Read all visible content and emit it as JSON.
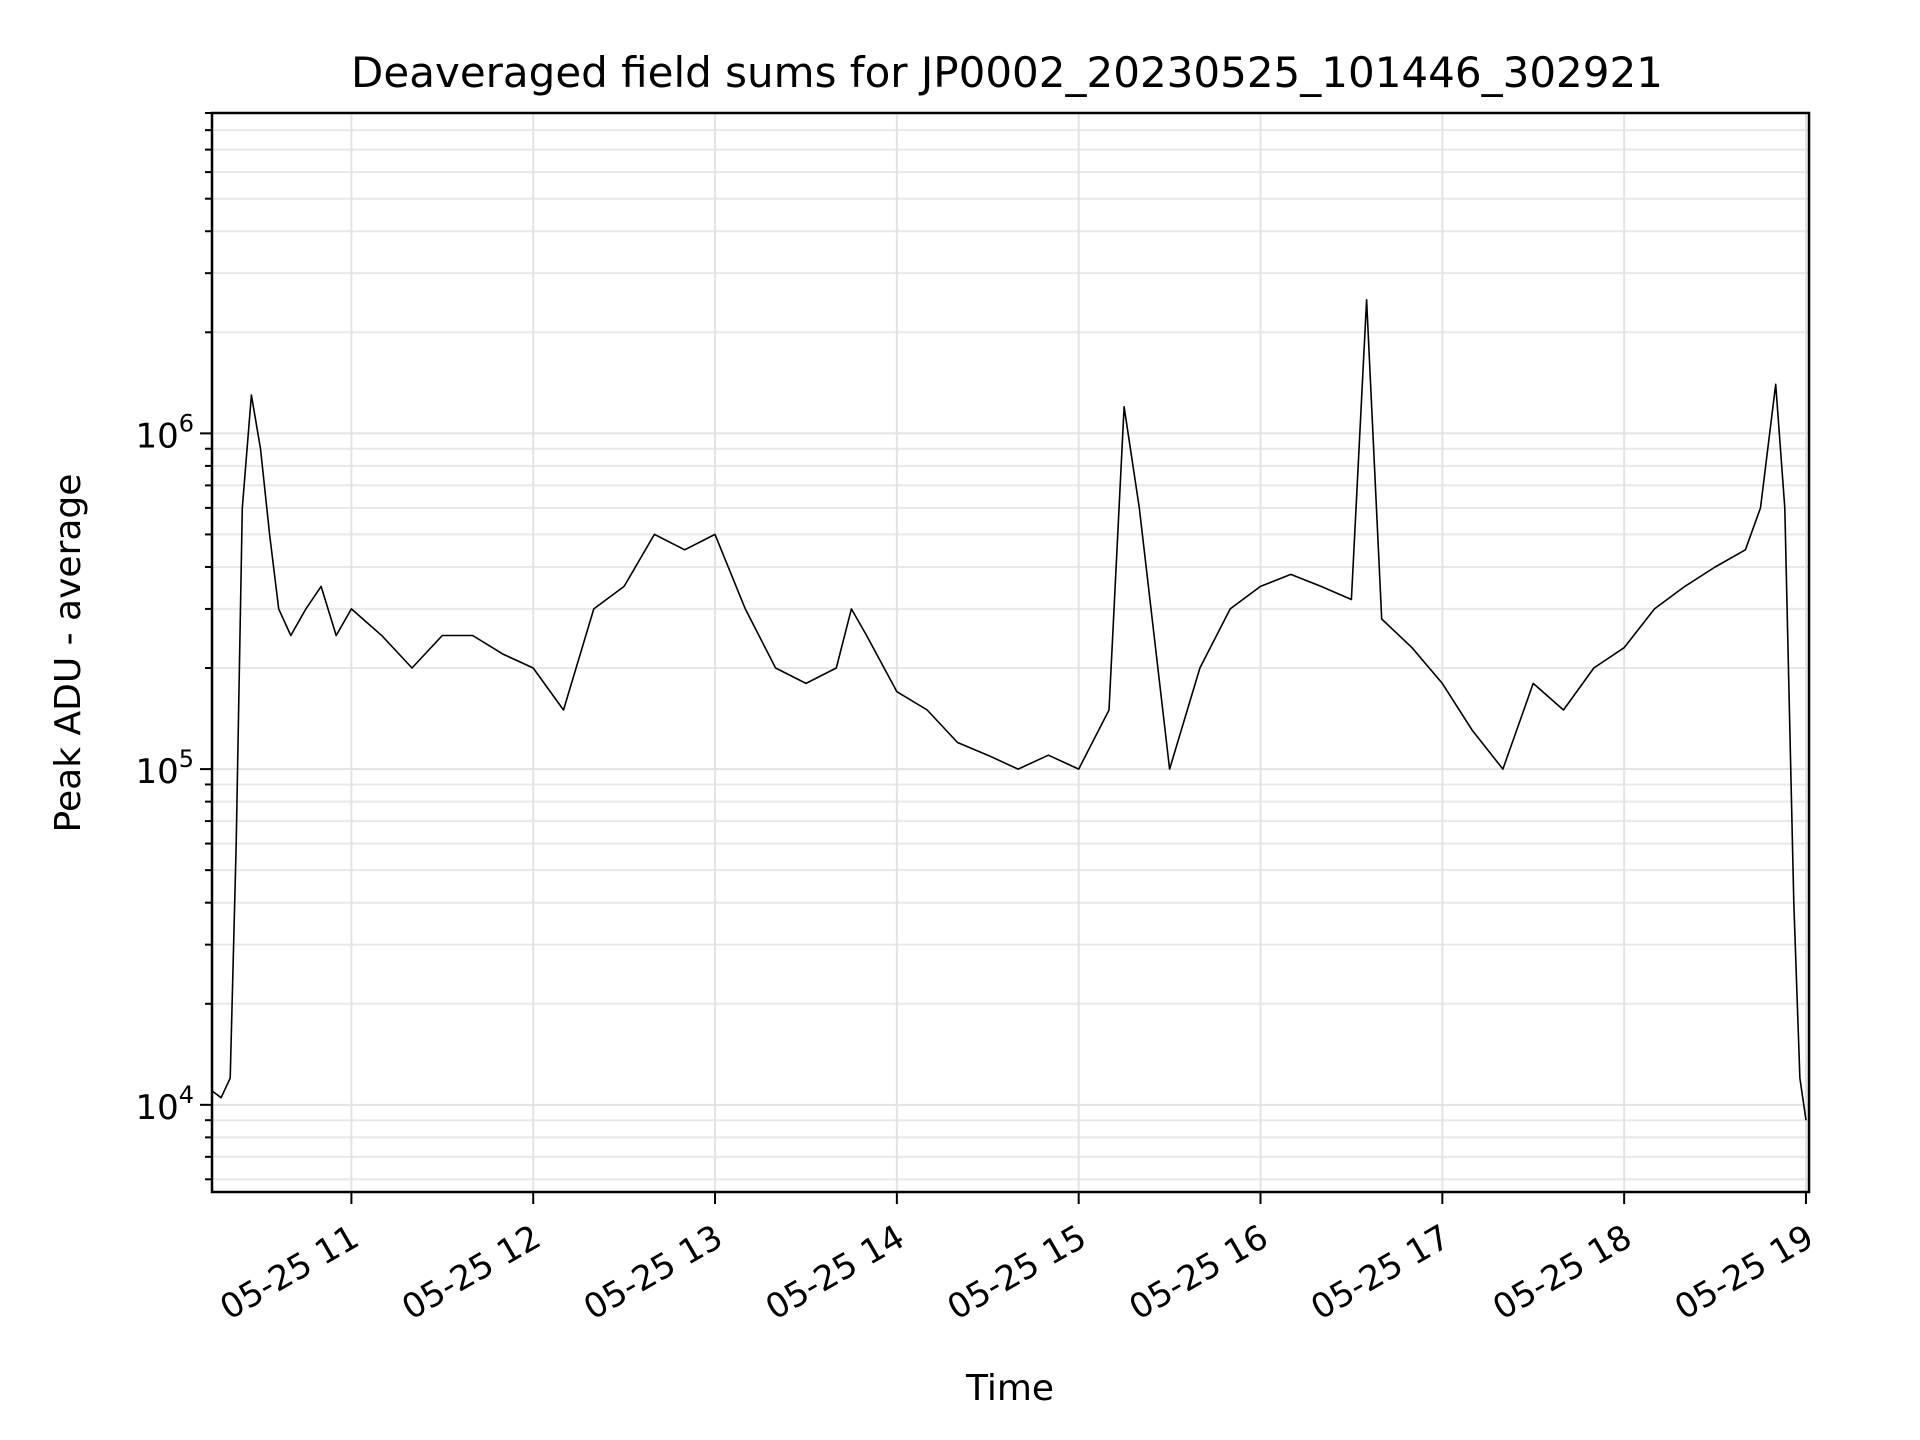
{
  "chart_data": {
    "type": "line",
    "title": "Deaveraged field sums for JP0002_20230525_101446_302921",
    "xlabel": "Time",
    "ylabel": "Peak ADU - average",
    "yscale": "log",
    "ylim": [
      5500,
      9000000
    ],
    "xlim": [
      "2023-05-25 10:14",
      "2023-05-25 19:01"
    ],
    "grid": true,
    "line_color": "#000000",
    "x_ticks": [
      {
        "time": "2023-05-25 11:00",
        "label": "05-25 11"
      },
      {
        "time": "2023-05-25 12:00",
        "label": "05-25 12"
      },
      {
        "time": "2023-05-25 13:00",
        "label": "05-25 13"
      },
      {
        "time": "2023-05-25 14:00",
        "label": "05-25 14"
      },
      {
        "time": "2023-05-25 15:00",
        "label": "05-25 15"
      },
      {
        "time": "2023-05-25 16:00",
        "label": "05-25 16"
      },
      {
        "time": "2023-05-25 17:00",
        "label": "05-25 17"
      },
      {
        "time": "2023-05-25 18:00",
        "label": "05-25 18"
      },
      {
        "time": "2023-05-25 19:00",
        "label": "05-25 19"
      }
    ],
    "y_ticks": [
      {
        "value": 10000,
        "base": "10",
        "exp": "4"
      },
      {
        "value": 100000,
        "base": "10",
        "exp": "5"
      },
      {
        "value": 1000000,
        "base": "10",
        "exp": "6"
      }
    ],
    "series": [
      {
        "x": [
          "2023-05-25 10:14",
          "2023-05-25 10:17",
          "2023-05-25 10:20",
          "2023-05-25 10:22",
          "2023-05-25 10:24",
          "2023-05-25 10:27",
          "2023-05-25 10:30",
          "2023-05-25 10:33",
          "2023-05-25 10:36",
          "2023-05-25 10:40",
          "2023-05-25 10:45",
          "2023-05-25 10:50",
          "2023-05-25 10:55",
          "2023-05-25 11:00",
          "2023-05-25 11:10",
          "2023-05-25 11:20",
          "2023-05-25 11:30",
          "2023-05-25 11:40",
          "2023-05-25 11:50",
          "2023-05-25 12:00",
          "2023-05-25 12:10",
          "2023-05-25 12:20",
          "2023-05-25 12:30",
          "2023-05-25 12:40",
          "2023-05-25 12:50",
          "2023-05-25 13:00",
          "2023-05-25 13:10",
          "2023-05-25 13:20",
          "2023-05-25 13:30",
          "2023-05-25 13:40",
          "2023-05-25 13:45",
          "2023-05-25 13:50",
          "2023-05-25 14:00",
          "2023-05-25 14:10",
          "2023-05-25 14:20",
          "2023-05-25 14:30",
          "2023-05-25 14:40",
          "2023-05-25 14:50",
          "2023-05-25 15:00",
          "2023-05-25 15:10",
          "2023-05-25 15:15",
          "2023-05-25 15:20",
          "2023-05-25 15:30",
          "2023-05-25 15:40",
          "2023-05-25 15:50",
          "2023-05-25 16:00",
          "2023-05-25 16:10",
          "2023-05-25 16:20",
          "2023-05-25 16:30",
          "2023-05-25 16:35",
          "2023-05-25 16:40",
          "2023-05-25 16:50",
          "2023-05-25 17:00",
          "2023-05-25 17:10",
          "2023-05-25 17:20",
          "2023-05-25 17:30",
          "2023-05-25 17:40",
          "2023-05-25 17:50",
          "2023-05-25 18:00",
          "2023-05-25 18:10",
          "2023-05-25 18:20",
          "2023-05-25 18:30",
          "2023-05-25 18:40",
          "2023-05-25 18:45",
          "2023-05-25 18:50",
          "2023-05-25 18:53",
          "2023-05-25 18:56",
          "2023-05-25 18:58",
          "2023-05-25 19:00"
        ],
        "y": [
          11000,
          10500,
          12000,
          60000,
          600000,
          1300000,
          900000,
          500000,
          300000,
          250000,
          300000,
          350000,
          250000,
          300000,
          250000,
          200000,
          250000,
          250000,
          220000,
          200000,
          150000,
          300000,
          350000,
          500000,
          450000,
          500000,
          300000,
          200000,
          180000,
          200000,
          300000,
          250000,
          170000,
          150000,
          120000,
          110000,
          100000,
          110000,
          100000,
          150000,
          1200000,
          600000,
          100000,
          200000,
          300000,
          350000,
          380000,
          350000,
          320000,
          2500000,
          280000,
          230000,
          180000,
          130000,
          100000,
          180000,
          150000,
          200000,
          230000,
          300000,
          350000,
          400000,
          450000,
          600000,
          1400000,
          600000,
          40000,
          12000,
          9000
        ]
      }
    ]
  }
}
